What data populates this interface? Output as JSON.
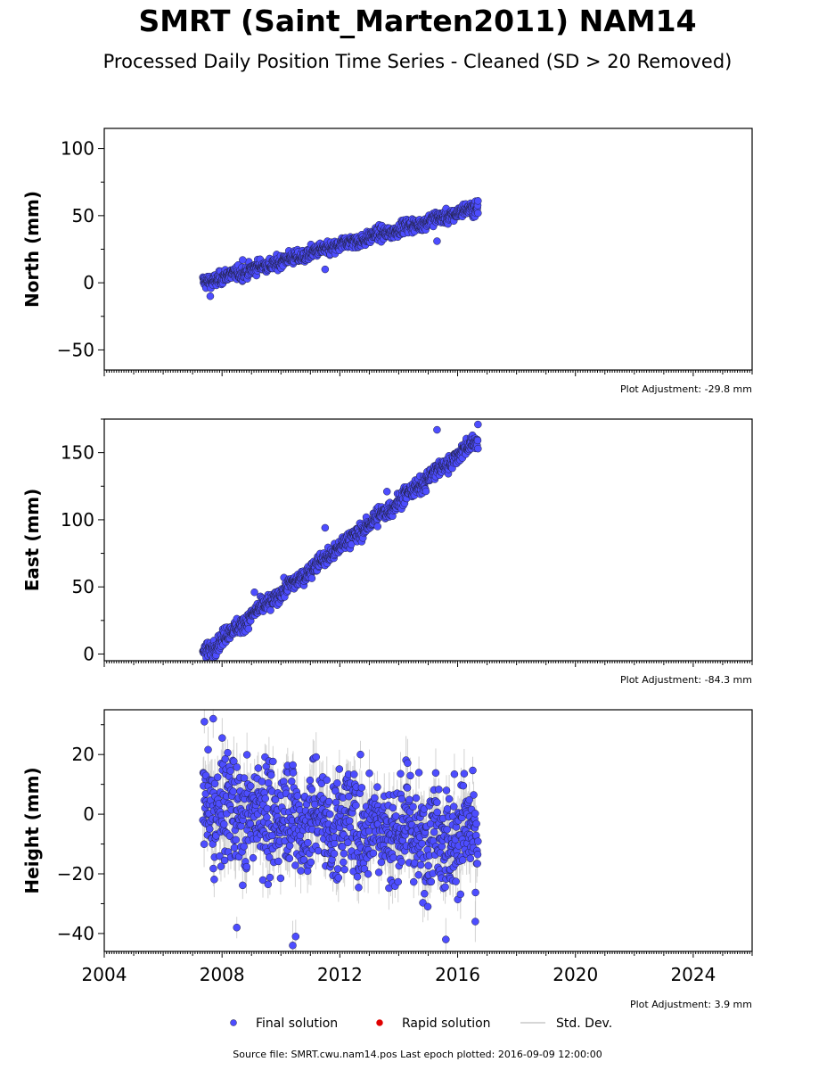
{
  "header": {
    "title": "SMRT (Saint_Marten2011) NAM14",
    "subtitle": "Processed Daily Position Time Series - Cleaned (SD > 20 Removed)"
  },
  "footer": {
    "source": "Source file: SMRT.cwu.nam14.pos  Last epoch plotted: 2016-09-09 12:00:00"
  },
  "colors": {
    "final": "#4d4dff",
    "rapid": "#e00000",
    "stddev": "#c8c8c8",
    "marker_edge": "#202040"
  },
  "chart_data": {
    "type": "scatter",
    "shared_x": true,
    "xlim": [
      2004,
      2026
    ],
    "x_ticks": [
      2004,
      2008,
      2012,
      2016,
      2020,
      2024
    ],
    "x_tick_labels": [
      "2004",
      "2008",
      "2012",
      "2016",
      "2020",
      "2024"
    ],
    "data_range": [
      2007.35,
      2016.69
    ],
    "legend": {
      "placement": "bottom-center",
      "entries": [
        {
          "label": "Final solution",
          "kind": "marker",
          "color": "#4d4dff"
        },
        {
          "label": "Rapid solution",
          "kind": "marker",
          "color": "#e00000"
        },
        {
          "label": "Std. Dev.",
          "kind": "line",
          "color": "#c8c8c8"
        }
      ]
    },
    "panels": [
      {
        "id": "north",
        "ylabel": "North (mm)",
        "ylim": [
          -65,
          115
        ],
        "yticks": [
          -50,
          0,
          50,
          100
        ],
        "ytick_labels": [
          "−50",
          "0",
          "50",
          "100"
        ],
        "adjustment": "Plot Adjustment: -29.8 mm",
        "trend": {
          "x": [
            2007.35,
            2016.69
          ],
          "y": [
            0,
            56
          ]
        },
        "scatter": 2.5,
        "errbar": 1.5,
        "outliers": [
          {
            "x": 2007.6,
            "y": -10
          },
          {
            "x": 2008.7,
            "y": 17
          },
          {
            "x": 2011.5,
            "y": 10
          },
          {
            "x": 2015.3,
            "y": 31
          },
          {
            "x": 2016.69,
            "y": 61
          }
        ]
      },
      {
        "id": "east",
        "ylabel": "East (mm)",
        "ylim": [
          -5,
          175
        ],
        "yticks": [
          0,
          50,
          100,
          150
        ],
        "ytick_labels": [
          "0",
          "50",
          "100",
          "150"
        ],
        "adjustment": "Plot Adjustment: -84.3 mm",
        "trend": {
          "x": [
            2007.35,
            2016.69
          ],
          "y": [
            0,
            160
          ]
        },
        "scatter": 3,
        "errbar": 2,
        "outliers": [
          {
            "x": 2009.1,
            "y": 46
          },
          {
            "x": 2011.5,
            "y": 94
          },
          {
            "x": 2013.6,
            "y": 121
          },
          {
            "x": 2015.3,
            "y": 167
          },
          {
            "x": 2016.69,
            "y": 171
          }
        ]
      },
      {
        "id": "height",
        "ylabel": "Height (mm)",
        "ylim": [
          -46,
          35
        ],
        "yticks": [
          -40,
          -20,
          0,
          20
        ],
        "ytick_labels": [
          "−40",
          "−20",
          "0",
          "20"
        ],
        "adjustment": "Plot Adjustment: 3.9 mm",
        "trend": {
          "x": [
            2007.35,
            2016.69
          ],
          "y": [
            2,
            -8
          ]
        },
        "scatter": 9,
        "errbar": 6,
        "outliers": [
          {
            "x": 2007.4,
            "y": 31
          },
          {
            "x": 2007.7,
            "y": 32
          },
          {
            "x": 2008.5,
            "y": -38
          },
          {
            "x": 2010.4,
            "y": -44
          },
          {
            "x": 2010.5,
            "y": -41
          },
          {
            "x": 2012.7,
            "y": 20
          },
          {
            "x": 2015.6,
            "y": -42
          },
          {
            "x": 2016.6,
            "y": -36
          }
        ]
      }
    ]
  }
}
